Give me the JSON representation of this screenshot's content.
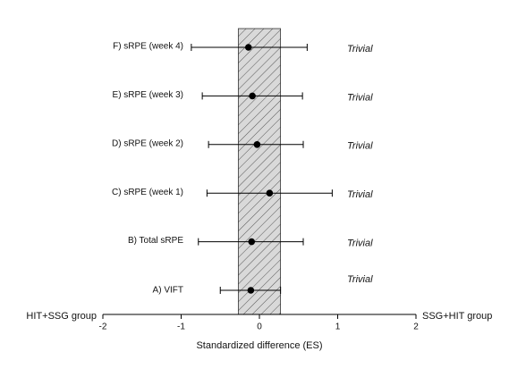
{
  "chart_data": {
    "type": "forest",
    "categories": [
      "F) sRPE (week 4)",
      "E) sRPE (week 3)",
      "D) sRPE (week 2)",
      "C) sRPE (week 1)",
      "B) Total sRPE",
      "A) VIFT"
    ],
    "values": [
      -0.14,
      -0.09,
      -0.03,
      0.13,
      -0.1,
      -0.11
    ],
    "lower": [
      -0.87,
      -0.73,
      -0.65,
      -0.67,
      -0.78,
      -0.5
    ],
    "upper": [
      0.61,
      0.55,
      0.56,
      0.93,
      0.56,
      0.27
    ],
    "annotations": [
      "Trivial",
      "Trivial",
      "Trivial",
      "Trivial",
      "Trivial",
      "Trivial"
    ],
    "trivial_region": [
      -0.27,
      0.27
    ],
    "xlim": [
      -2,
      2
    ],
    "xticks": [
      -2,
      -1,
      0,
      1,
      2
    ],
    "xlabel": "Standardized difference (ES)",
    "left_label": "HIT+SSG group",
    "right_label": "SSG+HIT group",
    "color": "#000000"
  }
}
